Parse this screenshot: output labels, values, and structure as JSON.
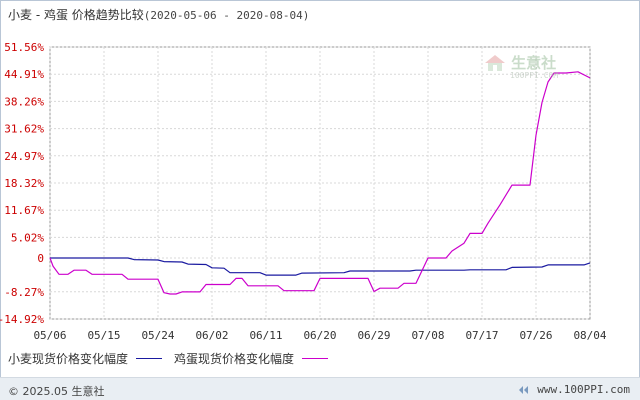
{
  "title": {
    "main": "小麦 - 鸡蛋 价格趋势比较",
    "range": "(2020-05-06 - 2020-08-04)"
  },
  "chart_data": {
    "type": "line",
    "y_ticks": [
      "51.56%",
      "44.91%",
      "38.26%",
      "31.62%",
      "24.97%",
      "18.32%",
      "11.67%",
      "5.02%",
      "0",
      "-8.27%",
      "-14.92%"
    ],
    "y_tick_values": [
      51.56,
      44.91,
      38.26,
      31.62,
      24.97,
      18.32,
      11.67,
      5.02,
      0,
      -8.27,
      -14.92
    ],
    "ylim": [
      -14.92,
      51.56
    ],
    "x_labels": [
      "05/06",
      "05/15",
      "05/24",
      "06/02",
      "06/11",
      "06/20",
      "06/29",
      "07/08",
      "07/17",
      "07/26",
      "08/04"
    ],
    "x_label_days": [
      0,
      9,
      18,
      27,
      36,
      45,
      54,
      63,
      72,
      81,
      90
    ],
    "grid": true,
    "legend_position": "bottom",
    "series": [
      {
        "name": "小麦现货价格变化幅度",
        "color": "#1a1aa0",
        "points": [
          [
            0,
            0
          ],
          [
            8,
            0
          ],
          [
            13,
            0
          ],
          [
            14,
            -0.4
          ],
          [
            18,
            -0.5
          ],
          [
            19,
            -0.9
          ],
          [
            22,
            -1
          ],
          [
            23,
            -1.5
          ],
          [
            26,
            -1.6
          ],
          [
            27,
            -2.4
          ],
          [
            29,
            -2.5
          ],
          [
            30,
            -3.6
          ],
          [
            35,
            -3.6
          ],
          [
            36,
            -4.2
          ],
          [
            41,
            -4.2
          ],
          [
            42,
            -3.7
          ],
          [
            49,
            -3.6
          ],
          [
            50,
            -3.2
          ],
          [
            60,
            -3.2
          ],
          [
            61,
            -3
          ],
          [
            69,
            -3
          ],
          [
            70,
            -2.9
          ],
          [
            76,
            -2.9
          ],
          [
            77,
            -2.3
          ],
          [
            82,
            -2.2
          ],
          [
            83,
            -1.7
          ],
          [
            89,
            -1.7
          ],
          [
            90,
            -1.2
          ]
        ]
      },
      {
        "name": "鸡蛋现货价格变化幅度",
        "color": "#cc00cc",
        "points": [
          [
            0,
            0
          ],
          [
            0.5,
            -2
          ],
          [
            1.5,
            -4
          ],
          [
            3,
            -4
          ],
          [
            4,
            -3
          ],
          [
            6,
            -3
          ],
          [
            7,
            -4
          ],
          [
            12,
            -4
          ],
          [
            13,
            -5.2
          ],
          [
            18,
            -5.2
          ],
          [
            19,
            -8.5
          ],
          [
            20,
            -8.8
          ],
          [
            21,
            -8.8
          ],
          [
            22,
            -8.3
          ],
          [
            25,
            -8.3
          ],
          [
            26,
            -6.5
          ],
          [
            30,
            -6.5
          ],
          [
            31,
            -5
          ],
          [
            32,
            -5
          ],
          [
            33,
            -6.8
          ],
          [
            38,
            -6.8
          ],
          [
            39,
            -8
          ],
          [
            44,
            -8
          ],
          [
            45,
            -5
          ],
          [
            53,
            -5
          ],
          [
            54,
            -8.2
          ],
          [
            55,
            -7.4
          ],
          [
            58,
            -7.4
          ],
          [
            59,
            -6.2
          ],
          [
            61,
            -6.2
          ],
          [
            63,
            0
          ],
          [
            66,
            0
          ],
          [
            67,
            1.7
          ],
          [
            69,
            3.6
          ],
          [
            70,
            6
          ],
          [
            72,
            6
          ],
          [
            73,
            8.5
          ],
          [
            75,
            13
          ],
          [
            77,
            17.8
          ],
          [
            80,
            17.8
          ],
          [
            81,
            30
          ],
          [
            82,
            38
          ],
          [
            83,
            43
          ],
          [
            84,
            45.2
          ],
          [
            86,
            45.2
          ],
          [
            88,
            45.5
          ],
          [
            90,
            44
          ]
        ]
      }
    ]
  },
  "legend": {
    "wheat": "小麦现货价格变化幅度",
    "egg": "鸡蛋现货价格变化幅度"
  },
  "watermark": {
    "text": "生意社",
    "sub": "100PPI.COM"
  },
  "footer": {
    "copyright": "© 2025.05 生意社",
    "site": "www.100PPI.com"
  },
  "colors": {
    "axis_text": "#cc0000",
    "grid": "#d8d8d8",
    "wheat": "#1a1aa0",
    "egg": "#cc00cc"
  }
}
